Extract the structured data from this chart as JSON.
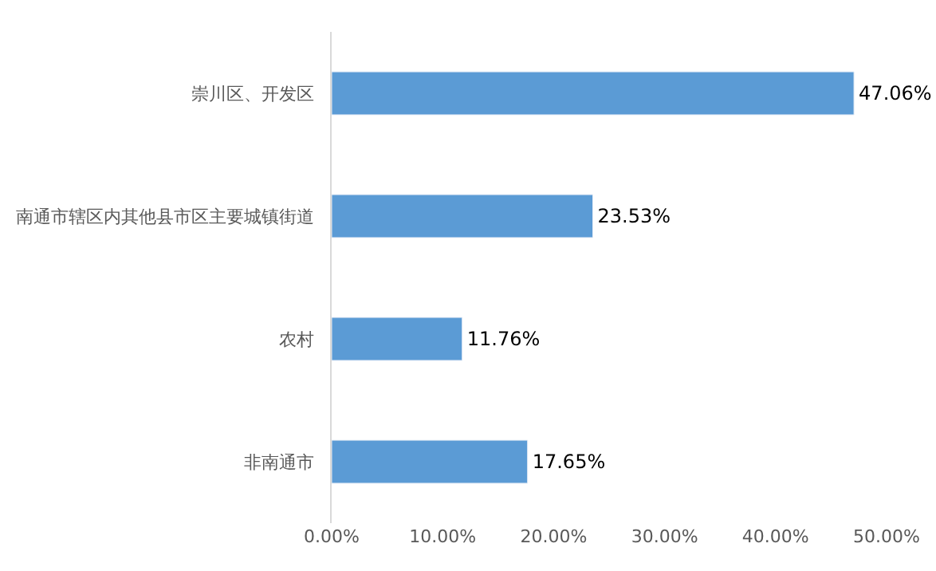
{
  "chart_data": {
    "type": "bar",
    "orientation": "horizontal",
    "categories": [
      "崇川区、开发区",
      "南通市辖区内其他县市区主要城镇街道",
      "农村",
      "非南通市"
    ],
    "values": [
      47.06,
      23.53,
      11.76,
      17.65
    ],
    "value_labels": [
      "47.06%",
      "23.53%",
      "11.76%",
      "17.65%"
    ],
    "color": "#5b9bd5",
    "xlim": [
      0,
      50
    ],
    "xticks": [
      {
        "value": 0,
        "label": "0.00%"
      },
      {
        "value": 10,
        "label": "10.00%"
      },
      {
        "value": 20,
        "label": "20.00%"
      },
      {
        "value": 30,
        "label": "30.00%"
      },
      {
        "value": 40,
        "label": "40.00%"
      },
      {
        "value": 50,
        "label": "50.00%"
      }
    ],
    "tick_labels": [
      "x",
      "y"
    ]
  }
}
